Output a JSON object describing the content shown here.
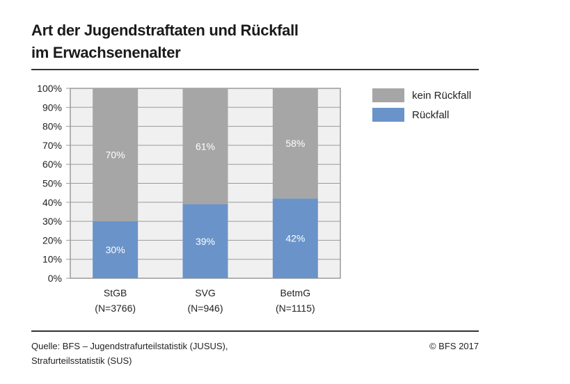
{
  "title_line1": "Art der Jugendstraftaten und Rückfall",
  "title_line2": "im Erwachsenenalter",
  "source_line1": "Quelle: BFS – Jugendstrafurteilstatistik (JUSUS),",
  "source_line2": "Strafurteilsstatistik (SUS)",
  "copyright": "© BFS 2017",
  "chart_data": {
    "type": "bar",
    "stacked": true,
    "categories": [
      "StGB",
      "SVG",
      "BetmG"
    ],
    "category_sublabels": [
      "(N=3766)",
      "(N=946)",
      "(N=1115)"
    ],
    "series": [
      {
        "name": "Rückfall",
        "values": [
          30,
          39,
          42
        ],
        "labels": [
          "30%",
          "39%",
          "42%"
        ],
        "color": "#6a93c9"
      },
      {
        "name": "kein Rückfall",
        "values": [
          70,
          61,
          58
        ],
        "labels": [
          "70%",
          "61%",
          "58%"
        ],
        "color": "#a6a6a6"
      }
    ],
    "legend_order": [
      "kein Rückfall",
      "Rückfall"
    ],
    "legend_position": "right",
    "ylim": [
      0,
      100
    ],
    "yticks": [
      "0%",
      "10%",
      "20%",
      "30%",
      "40%",
      "50%",
      "60%",
      "70%",
      "80%",
      "90%",
      "100%"
    ],
    "grid": true,
    "plot_background": "#f0f0f0"
  }
}
